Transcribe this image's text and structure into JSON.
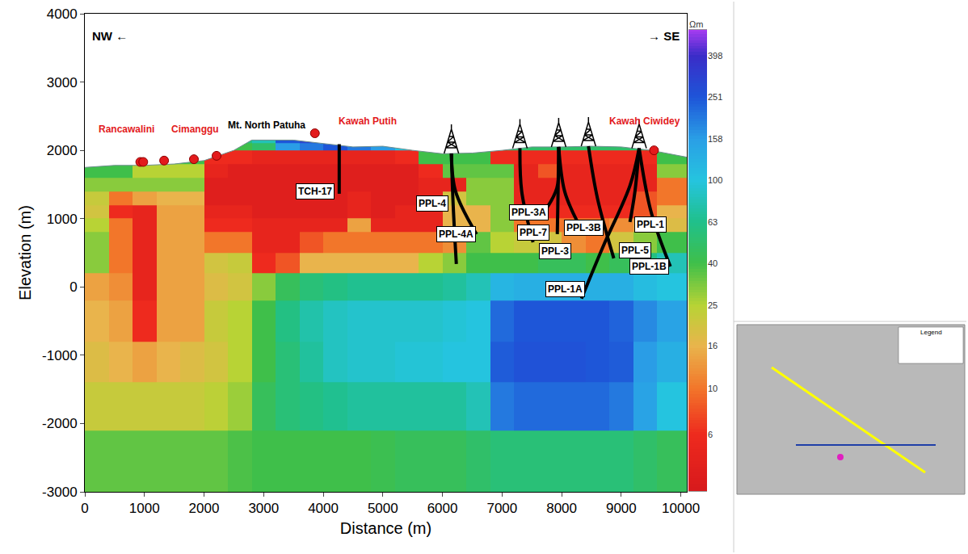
{
  "chart_data": {
    "type": "heatmap",
    "xlabel": "Distance (m)",
    "ylabel": "Elevation (m)",
    "xlim": [
      0,
      10100
    ],
    "ylim": [
      -3000,
      4000
    ],
    "xticks": [
      0,
      1000,
      2000,
      3000,
      4000,
      5000,
      6000,
      7000,
      8000,
      9000,
      10000
    ],
    "yticks": [
      -3000,
      -2000,
      -1000,
      0,
      1000,
      2000,
      3000,
      4000
    ],
    "x_edges": [
      0,
      400,
      800,
      1200,
      1600,
      2000,
      2400,
      2800,
      3200,
      3600,
      4000,
      4400,
      4800,
      5200,
      5600,
      6000,
      6400,
      6800,
      7200,
      7600,
      8000,
      8400,
      8800,
      9200,
      9600,
      10000,
      10100
    ],
    "y_edges": [
      -3000,
      -2100,
      -1400,
      -800,
      -200,
      200,
      500,
      800,
      1000,
      1200,
      1400,
      1600,
      1800,
      2000,
      2100,
      2200
    ],
    "cells": [
      [
        35,
        35,
        35,
        35,
        35,
        35,
        38,
        40,
        40,
        40,
        40,
        40,
        42,
        45,
        45,
        45,
        50,
        55,
        55,
        55,
        55,
        55,
        55,
        50,
        45,
        45
      ],
      [
        22,
        22,
        22,
        22,
        22,
        24,
        28,
        45,
        55,
        60,
        65,
        70,
        70,
        70,
        70,
        70,
        80,
        200,
        220,
        220,
        220,
        220,
        200,
        150,
        100,
        100
      ],
      [
        18,
        16,
        14,
        16,
        18,
        20,
        25,
        40,
        55,
        70,
        85,
        90,
        90,
        95,
        95,
        100,
        100,
        240,
        260,
        260,
        260,
        250,
        240,
        160,
        130,
        130
      ],
      [
        16,
        14,
        6,
        14,
        14,
        22,
        25,
        40,
        60,
        75,
        85,
        90,
        90,
        90,
        90,
        95,
        100,
        220,
        250,
        250,
        250,
        250,
        230,
        180,
        150,
        150
      ],
      [
        14,
        12,
        5,
        14,
        14,
        18,
        20,
        30,
        45,
        55,
        60,
        65,
        65,
        65,
        65,
        70,
        80,
        120,
        130,
        130,
        130,
        130,
        130,
        110,
        100,
        100
      ],
      [
        30,
        10,
        5,
        14,
        14,
        20,
        22,
        6,
        8,
        16,
        16,
        16,
        16,
        16,
        25,
        30,
        40,
        40,
        40,
        45,
        45,
        40,
        45,
        60,
        80,
        80
      ],
      [
        30,
        10,
        5,
        14,
        14,
        10,
        10,
        5,
        5,
        8,
        10,
        10,
        10,
        10,
        10,
        12,
        35,
        25,
        22,
        20,
        12,
        10,
        20,
        30,
        40,
        40
      ],
      [
        25,
        10,
        5,
        14,
        14,
        6,
        6,
        5,
        5,
        5,
        5,
        14,
        5,
        5,
        5,
        16,
        16,
        30,
        10,
        10,
        10,
        10,
        12,
        16,
        18,
        18
      ],
      [
        20,
        6,
        5,
        14,
        14,
        5,
        5,
        4,
        4,
        4,
        4,
        5,
        4,
        5,
        5,
        16,
        16,
        30,
        6,
        6,
        6,
        6,
        6,
        8,
        16,
        16
      ],
      [
        22,
        10,
        14,
        16,
        16,
        4,
        4,
        4,
        4,
        4,
        4,
        5,
        4,
        4,
        5,
        20,
        30,
        30,
        5,
        5,
        5,
        5,
        5,
        8,
        10,
        10
      ],
      [
        30,
        30,
        30,
        30,
        30,
        4,
        4,
        4,
        4,
        4,
        4,
        4,
        4,
        4,
        5,
        5,
        30,
        30,
        5,
        5,
        5,
        5,
        5,
        5,
        10,
        10
      ],
      [
        40,
        40,
        25,
        25,
        25,
        5,
        4,
        4,
        4,
        4,
        4,
        4,
        4,
        4,
        6,
        35,
        35,
        35,
        5,
        8,
        5,
        5,
        5,
        5,
        30,
        30
      ],
      [
        45,
        45,
        45,
        45,
        40,
        6,
        6,
        5,
        5,
        5,
        5,
        5,
        5,
        6,
        40,
        40,
        40,
        6,
        6,
        6,
        6,
        6,
        6,
        6,
        40,
        40
      ],
      [
        60,
        60,
        60,
        60,
        60,
        40,
        40,
        50,
        160,
        200,
        250,
        200,
        160,
        100,
        40,
        40,
        40,
        50,
        50,
        50,
        50,
        50,
        50,
        50,
        40,
        40
      ],
      [
        60,
        60,
        60,
        60,
        60,
        50,
        60,
        80,
        250,
        300,
        300,
        250,
        150,
        100,
        50,
        50,
        50,
        60,
        60,
        60,
        60,
        60,
        60,
        60,
        50,
        50
      ]
    ],
    "colorbar": {
      "title": "Ωm",
      "range": [
        3.2,
        530
      ],
      "ticks": [
        6,
        10,
        16,
        25,
        40,
        63,
        100,
        158,
        251,
        398
      ],
      "colorscale": [
        [
          3.2,
          "#d7191c"
        ],
        [
          6,
          "#ee2a1e"
        ],
        [
          10,
          "#f2762a"
        ],
        [
          16,
          "#e9b44c"
        ],
        [
          25,
          "#b8d335"
        ],
        [
          40,
          "#3fbf4a"
        ],
        [
          63,
          "#20c08a"
        ],
        [
          100,
          "#25c4df"
        ],
        [
          158,
          "#2a9fe6"
        ],
        [
          251,
          "#1e55d8"
        ],
        [
          398,
          "#3a2cc8"
        ],
        [
          530,
          "#a63cf0"
        ]
      ]
    },
    "direction_labels": {
      "left": "NW ←",
      "right": "→ SE"
    },
    "topography": {
      "x": [
        0,
        500,
        1000,
        1500,
        2000,
        2500,
        2800,
        3500,
        4000,
        4500,
        5000,
        5500,
        6000,
        6500,
        7000,
        7500,
        8000,
        8500,
        9000,
        9500,
        10100
      ],
      "y": [
        1750,
        1780,
        1780,
        1800,
        1850,
        2000,
        2150,
        2150,
        2100,
        2050,
        2060,
        2000,
        1950,
        1960,
        2000,
        2050,
        2050,
        2060,
        2050,
        2000,
        1900
      ]
    },
    "manifestations": {
      "x": [
        930,
        980,
        1330,
        1830,
        2210,
        3860,
        9550
      ],
      "y": [
        1830,
        1830,
        1850,
        1870,
        1920,
        2250,
        2000
      ],
      "color": "#e31a1c"
    },
    "places": [
      {
        "text": "Rancawalini",
        "x": 700,
        "y": 2310,
        "color": "#e31a1c"
      },
      {
        "text": "Cimanggu",
        "x": 1850,
        "y": 2310,
        "color": "#e31a1c"
      },
      {
        "text": "Mt. North Patuha",
        "x": 3049,
        "y": 2370,
        "color": "#000000"
      },
      {
        "text": "Kawah Putih",
        "x": 4742,
        "y": 2428,
        "color": "#e31a1c"
      },
      {
        "text": "Kawah Ciwidey",
        "x": 9400,
        "y": 2428,
        "color": "#e31a1c"
      }
    ],
    "rigs": {
      "x": [
        6150,
        7300,
        7950,
        8450,
        9300
      ],
      "y": [
        1955,
        2030,
        2050,
        2060,
        2030
      ]
    },
    "wells": [
      {
        "name": "TCH-17",
        "x": [
          4268,
          4268
        ],
        "y": [
          2090,
          1364
        ],
        "label_x": 3862,
        "label_y": 1400
      },
      {
        "name": "PPL-4",
        "x": [
          6150,
          6180,
          6233
        ],
        "y": [
          1955,
          1200,
          336
        ],
        "label_x": 5827,
        "label_y": 1222
      },
      {
        "name": "PPL-4A",
        "x": [
          6150,
          6220,
          6572
        ],
        "y": [
          1955,
          1400,
          773
        ],
        "label_x": 6233,
        "label_y": 773
      },
      {
        "name": "PPL-3A",
        "x": [
          7300,
          7330,
          7520
        ],
        "y": [
          2030,
          1400,
          655
        ],
        "label_x": 7452,
        "label_y": 1092
      },
      {
        "name": "PPL-7",
        "x": [
          7950,
          7920,
          7683
        ],
        "y": [
          2050,
          1450,
          1070
        ],
        "label_x": 7520,
        "label_y": 797
      },
      {
        "name": "PPL-3",
        "x": [
          7950,
          7940,
          7927
        ],
        "y": [
          2050,
          1400,
          773
        ],
        "label_x": 7886,
        "label_y": 525
      },
      {
        "name": "PPL-3B",
        "x": [
          7950,
          8050,
          8266
        ],
        "y": [
          2050,
          1400,
          950
        ],
        "label_x": 8374,
        "label_y": 868
      },
      {
        "name": "PPL-5",
        "x": [
          8450,
          8600,
          8875
        ],
        "y": [
          2060,
          1300,
          418
        ],
        "label_x": 9228,
        "label_y": 537
      },
      {
        "name": "PPL-1",
        "x": [
          9300,
          9230,
          9146
        ],
        "y": [
          2030,
          1400,
          950
        ],
        "label_x": 9485,
        "label_y": 915
      },
      {
        "name": "PPL-1B",
        "x": [
          9300,
          9500,
          9824
        ],
        "y": [
          2030,
          1100,
          300
        ],
        "label_x": 9472,
        "label_y": 300
      },
      {
        "name": "PPL-1A",
        "x": [
          9300,
          9146,
          8700,
          8333
        ],
        "y": [
          2030,
          1482,
          600,
          -170
        ],
        "label_x": 8062,
        "label_y": -31
      }
    ],
    "inset": {
      "legend_title": "Legend"
    }
  }
}
